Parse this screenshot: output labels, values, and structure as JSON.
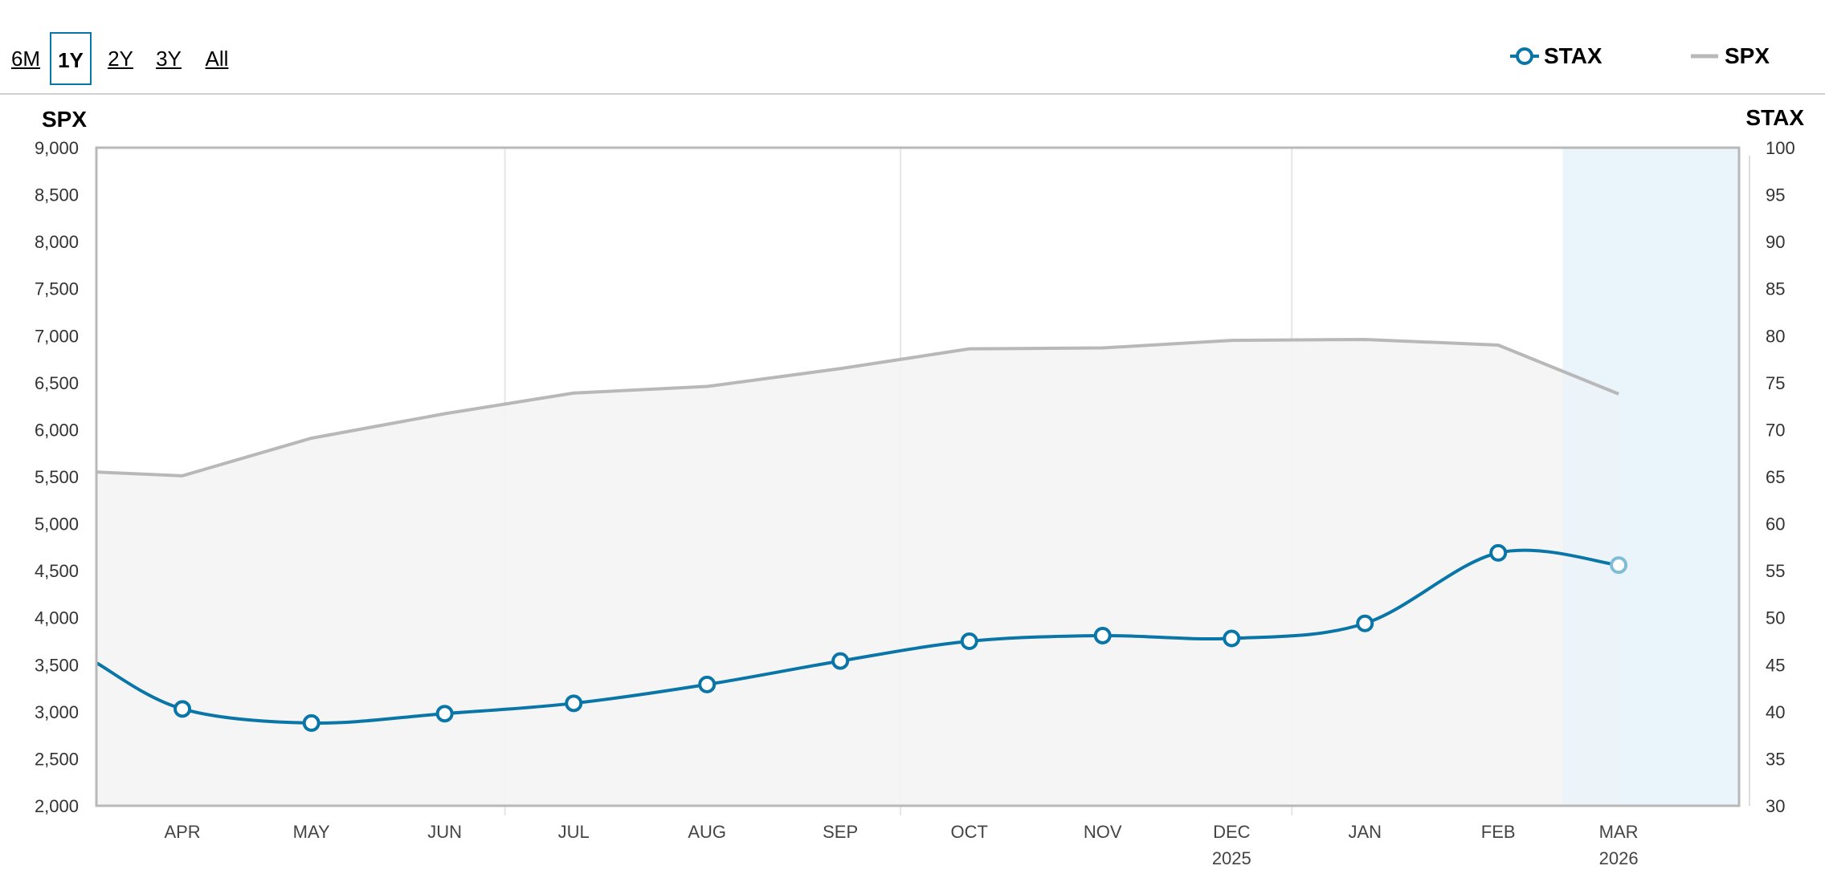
{
  "range_selector": {
    "buttons": [
      {
        "label": "6M",
        "active": false
      },
      {
        "label": "1Y",
        "active": true
      },
      {
        "label": "2Y",
        "active": false
      },
      {
        "label": "3Y",
        "active": false
      },
      {
        "label": "All",
        "active": false
      }
    ]
  },
  "legend": {
    "stax_label": "STAX",
    "spx_label": "SPX"
  },
  "colors": {
    "stax": "#0a76a8",
    "spx": "#b8b8b8",
    "area_fill": "#f4f4f4",
    "forecast_band": "#eaf4fb",
    "grid": "#e6e6e6"
  },
  "chart_data": {
    "type": "line",
    "left_axis": {
      "title": "SPX",
      "min": 2000,
      "max": 9000,
      "step": 500,
      "ticks": [
        "2,000",
        "2,500",
        "3,000",
        "3,500",
        "4,000",
        "4,500",
        "5,000",
        "5,500",
        "6,000",
        "6,500",
        "7,000",
        "7,500",
        "8,000",
        "8,500",
        "9,000"
      ]
    },
    "right_axis": {
      "title": "STAX",
      "min": 30,
      "max": 100,
      "step": 5,
      "ticks": [
        "30",
        "35",
        "40",
        "45",
        "50",
        "55",
        "60",
        "65",
        "70",
        "75",
        "80",
        "85",
        "90",
        "95",
        "100"
      ]
    },
    "x_axis": {
      "domain": [
        "2025-03-12",
        "2026-03-29"
      ],
      "ticks": [
        {
          "date": "2025-04-01",
          "label": "APR",
          "year": ""
        },
        {
          "date": "2025-05-01",
          "label": "MAY",
          "year": ""
        },
        {
          "date": "2025-06-01",
          "label": "JUN",
          "year": ""
        },
        {
          "date": "2025-07-01",
          "label": "JUL",
          "year": ""
        },
        {
          "date": "2025-08-01",
          "label": "AUG",
          "year": ""
        },
        {
          "date": "2025-09-01",
          "label": "SEP",
          "year": ""
        },
        {
          "date": "2025-10-01",
          "label": "OCT",
          "year": ""
        },
        {
          "date": "2025-11-01",
          "label": "NOV",
          "year": ""
        },
        {
          "date": "2025-12-01",
          "label": "DEC",
          "year": "2025"
        },
        {
          "date": "2026-01-01",
          "label": "JAN",
          "year": ""
        },
        {
          "date": "2026-02-01",
          "label": "FEB",
          "year": ""
        },
        {
          "date": "2026-03-01",
          "label": "MAR",
          "year": "2026"
        }
      ],
      "gridlines": [
        "2025-06-15",
        "2025-09-15",
        "2025-12-15"
      ],
      "forecast_start": "2026-02-16"
    },
    "series": [
      {
        "name": "STAX",
        "axis": "right",
        "points": [
          {
            "x": "2025-03-12",
            "y": 45.2,
            "marker": false
          },
          {
            "x": "2025-04-01",
            "y": 40.3,
            "marker": true
          },
          {
            "x": "2025-05-01",
            "y": 38.8,
            "marker": true
          },
          {
            "x": "2025-06-01",
            "y": 39.8,
            "marker": true
          },
          {
            "x": "2025-07-01",
            "y": 40.9,
            "marker": true
          },
          {
            "x": "2025-08-01",
            "y": 42.9,
            "marker": true
          },
          {
            "x": "2025-09-01",
            "y": 45.4,
            "marker": true
          },
          {
            "x": "2025-10-01",
            "y": 47.5,
            "marker": true
          },
          {
            "x": "2025-11-01",
            "y": 48.1,
            "marker": true
          },
          {
            "x": "2025-12-01",
            "y": 47.8,
            "marker": true
          },
          {
            "x": "2026-01-01",
            "y": 49.4,
            "marker": true
          },
          {
            "x": "2026-02-01",
            "y": 56.9,
            "marker": true
          },
          {
            "x": "2026-03-01",
            "y": 55.6,
            "marker": true
          }
        ]
      },
      {
        "name": "SPX",
        "axis": "left",
        "points": [
          {
            "x": "2025-03-12",
            "y": 5550
          },
          {
            "x": "2025-04-01",
            "y": 5510
          },
          {
            "x": "2025-05-01",
            "y": 5910
          },
          {
            "x": "2025-06-01",
            "y": 6170
          },
          {
            "x": "2025-07-01",
            "y": 6390
          },
          {
            "x": "2025-08-01",
            "y": 6460
          },
          {
            "x": "2025-09-01",
            "y": 6650
          },
          {
            "x": "2025-10-01",
            "y": 6860
          },
          {
            "x": "2025-11-01",
            "y": 6870
          },
          {
            "x": "2025-12-01",
            "y": 6950
          },
          {
            "x": "2026-01-01",
            "y": 6960
          },
          {
            "x": "2026-02-01",
            "y": 6900
          },
          {
            "x": "2026-03-01",
            "y": 6380
          }
        ]
      }
    ]
  }
}
